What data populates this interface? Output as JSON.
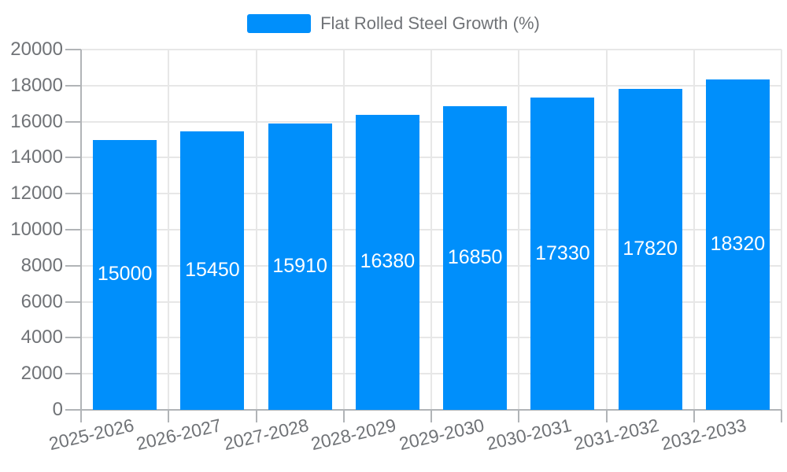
{
  "chart_data": {
    "type": "bar",
    "title": "",
    "legend": "Flat Rolled Steel Growth (%)",
    "legend_position": "top",
    "categories": [
      "2025-2026",
      "2026-2027",
      "2027-2028",
      "2028-2029",
      "2029-2030",
      "2030-2031",
      "2031-2032",
      "2032-2033"
    ],
    "series": [
      {
        "name": "Flat Rolled Steel Growth (%)",
        "values": [
          15000,
          15450,
          15910,
          16380,
          16850,
          17330,
          17820,
          18320
        ]
      }
    ],
    "value_labels": [
      "15000",
      "15450",
      "15910",
      "16380",
      "16850",
      "17330",
      "17820",
      "18320"
    ],
    "xlabel": "",
    "ylabel": "",
    "ylim": [
      0,
      20000
    ],
    "ytick_step": 2000,
    "ytick_labels": [
      "0",
      "2000",
      "4000",
      "6000",
      "8000",
      "10000",
      "12000",
      "14000",
      "16000",
      "18000",
      "20000"
    ],
    "grid": true
  },
  "colors": {
    "bar": "#008FFB",
    "bar_value_text": "#ffffff",
    "gridline": "#e7e7e7",
    "axis_line": "#b1b4b7",
    "tick": "#b1b4b7",
    "axis_label_text": "#707377",
    "legend_text": "#707377",
    "background": "#ffffff"
  }
}
